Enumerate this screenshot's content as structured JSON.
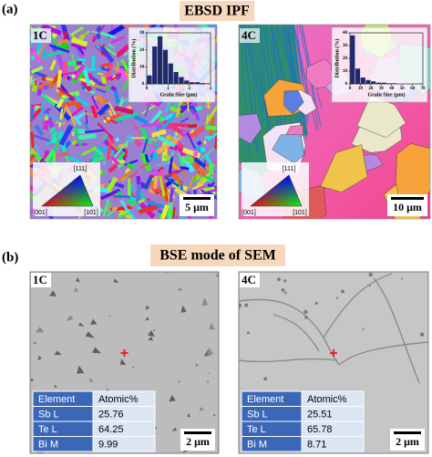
{
  "panel_a": {
    "label": "(a)",
    "title": "EBSD IPF",
    "samples": [
      {
        "name": "1C",
        "scale_bar": "5 μm",
        "ipf_labels": [
          "[111]",
          "[001]",
          "[101]"
        ],
        "inset": {
          "xlabel": "Grain Size (μm)",
          "ylabel": "Distribution (%)",
          "bins": [
            0,
            0.25,
            0.5,
            0.75,
            1,
            1.25,
            1.5,
            1.75,
            2,
            2.25,
            2.5,
            2.75,
            3
          ],
          "values": [
            5,
            22,
            28,
            20,
            12,
            7,
            4,
            2,
            1,
            1,
            0.5,
            0.3
          ],
          "xlim": [
            0,
            3
          ],
          "ylim": [
            0,
            30
          ],
          "xticks": [
            0,
            1,
            2,
            3
          ],
          "yticks": [
            0,
            10,
            20,
            30
          ],
          "color": "#1f2a6b"
        }
      },
      {
        "name": "4C",
        "scale_bar": "10 μm",
        "ipf_labels": [
          "[111]",
          "[001]",
          "[101]"
        ],
        "inset": {
          "xlabel": "Grain Size (μm)",
          "ylabel": "Distribution (%)",
          "bins": [
            0,
            5,
            10,
            15,
            20,
            25,
            30,
            35,
            40,
            45,
            50,
            55,
            60,
            65,
            70
          ],
          "values": [
            38,
            12,
            5,
            3,
            2,
            1,
            1,
            0.5,
            0.5,
            0,
            0,
            0,
            0,
            0.3
          ],
          "xlim": [
            0,
            70
          ],
          "ylim": [
            0,
            40
          ],
          "xticks": [
            0,
            10,
            20,
            30,
            40,
            50,
            60,
            70
          ],
          "yticks": [
            0,
            10,
            20,
            30,
            40
          ],
          "color": "#1f2a6b"
        }
      }
    ]
  },
  "panel_b": {
    "label": "(b)",
    "title": "BSE mode of SEM",
    "samples": [
      {
        "name": "1C",
        "scale_bar": "2 μm",
        "table": {
          "header": [
            "Element",
            "Atomic%"
          ],
          "rows": [
            [
              "Sb L",
              25.76
            ],
            [
              "Te L",
              64.25
            ],
            [
              "Bi M",
              9.99
            ]
          ]
        }
      },
      {
        "name": "4C",
        "scale_bar": "2 μm",
        "table": {
          "header": [
            "Element",
            "Atomic%"
          ],
          "rows": [
            [
              "Sb L",
              25.51
            ],
            [
              "Te L",
              65.78
            ],
            [
              "Bi M",
              8.71
            ]
          ]
        }
      }
    ]
  }
}
